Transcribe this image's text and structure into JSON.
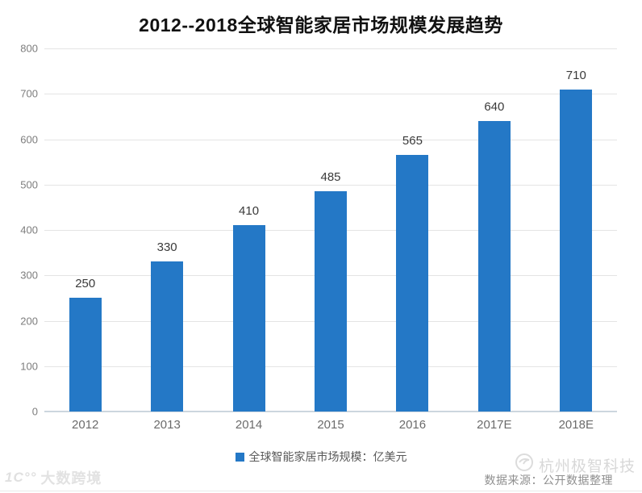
{
  "page": {
    "title": "2012--2018全球智能家居市场规模发展趋势"
  },
  "chart_data": {
    "type": "bar",
    "title": "2012--2018全球智能家居市场规模发展趋势",
    "categories": [
      "2012",
      "2013",
      "2014",
      "2015",
      "2016",
      "2017E",
      "2018E"
    ],
    "values": [
      250,
      330,
      410,
      485,
      565,
      640,
      710
    ],
    "series_name": "全球智能家居市场规模：亿美元",
    "xlabel": "",
    "ylabel": "",
    "ylim": [
      0,
      800
    ],
    "ytick_step": 100,
    "grid": true,
    "legend_position": "bottom",
    "value_labels": true,
    "bar_color": "#2478c6"
  },
  "legend": {
    "label": "全球智能家居市场规模：亿美元"
  },
  "footer": {
    "source": "数据来源：公开数据整理",
    "watermark_left_logo": "1C°°",
    "watermark_left": "大数跨境",
    "watermark_right": "杭州极智科技"
  },
  "colors": {
    "bar": "#2478c6",
    "gridline": "#e4e4e4",
    "axis_line": "#ccd6de",
    "title_text": "#111111",
    "tick_text": "#7d7d7d",
    "value_text": "#3a3a3a",
    "legend_text": "#595959",
    "source_text": "#8f8f8f",
    "watermark_text": "#d8d8d8"
  }
}
